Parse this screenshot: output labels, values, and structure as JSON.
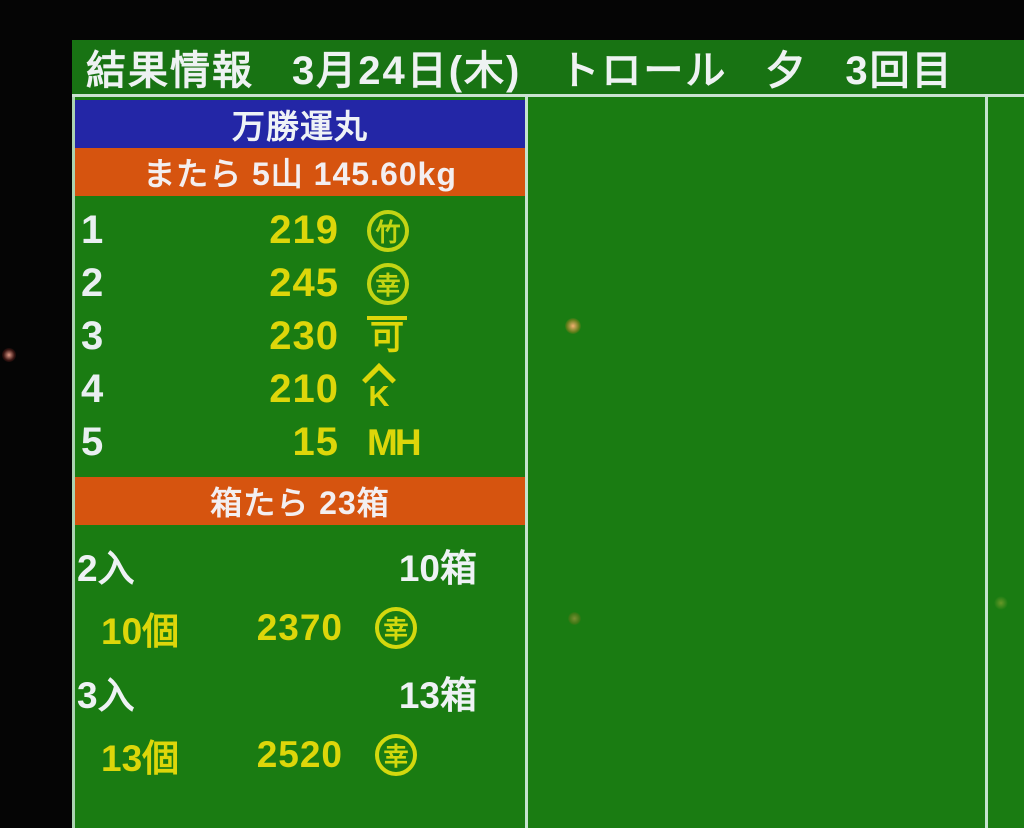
{
  "header": {
    "title": "結果情報",
    "date": "3月24日(木)",
    "method": "トロール",
    "session": "夕",
    "round": "3回目"
  },
  "panel": {
    "vessel_name": "万勝運丸",
    "lot_banner": "またら 5山 145.60kg",
    "rows": [
      {
        "no": "1",
        "price": "219",
        "mark": "竹"
      },
      {
        "no": "2",
        "price": "245",
        "mark": "幸"
      },
      {
        "no": "3",
        "price": "230",
        "mark": "可"
      },
      {
        "no": "4",
        "price": "210",
        "mark": "K"
      },
      {
        "no": "5",
        "price": "15",
        "mark": "MH"
      }
    ],
    "box_banner": "箱たら 23箱",
    "box_groups": [
      {
        "pack": "2入",
        "boxes": "10箱",
        "count": "10個",
        "price": "2370",
        "mark": "幸"
      },
      {
        "pack": "3入",
        "boxes": "13箱",
        "count": "13個",
        "price": "2520",
        "mark": "幸"
      }
    ]
  },
  "colors": {
    "screen_green": "#1a7c12",
    "banner_blue": "#2326a6",
    "banner_orange": "#d6540f",
    "text_yellow": "#ddd60a",
    "text_white": "#eef2f2"
  }
}
